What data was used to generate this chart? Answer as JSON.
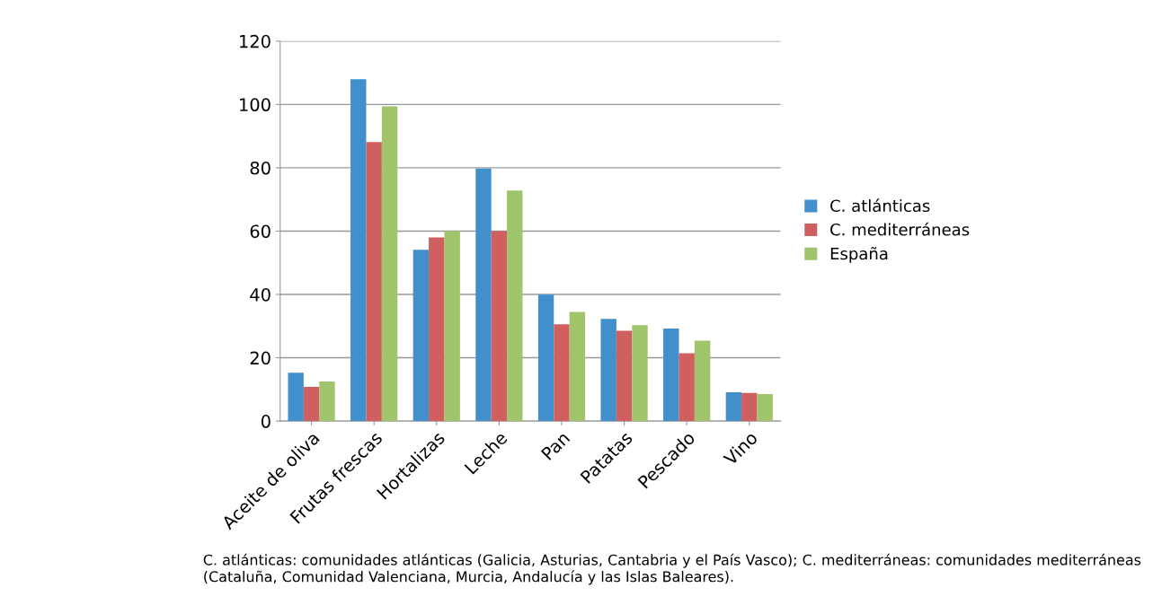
{
  "chart_data": {
    "type": "bar",
    "categories": [
      "Aceite de oliva",
      "Frutas frescas",
      "Hortalizas",
      "Leche",
      "Pan",
      "Patatas",
      "Pescado",
      "Vino"
    ],
    "series": [
      {
        "name": "C. atlánticas",
        "color": "#4190cb",
        "values": [
          15.3,
          108,
          54.1,
          79.8,
          39.9,
          32.3,
          29.2,
          9.1
        ]
      },
      {
        "name": "C. mediterráneas",
        "color": "#d06060",
        "values": [
          10.8,
          88.1,
          58,
          60,
          30.6,
          28.5,
          21.4,
          8.9
        ]
      },
      {
        "name": "España",
        "color": "#a0c46c",
        "values": [
          12.5,
          99.4,
          60,
          72.8,
          34.5,
          30.3,
          25.4,
          8.5
        ]
      }
    ],
    "ylim": [
      0,
      120
    ],
    "yticks": [
      0,
      20,
      40,
      60,
      80,
      100,
      120
    ],
    "grid": "y",
    "legend": "right",
    "annotations": [
      "C. atlánticas: comunidades atlánticas (Galicia, Asturias, Cantabria y el País Vasco); C. mediterráneas: comunidades mediterráneas (Cataluña, Comunidad Valenciana, Murcia, Andalucía y las Islas Baleares)."
    ]
  }
}
